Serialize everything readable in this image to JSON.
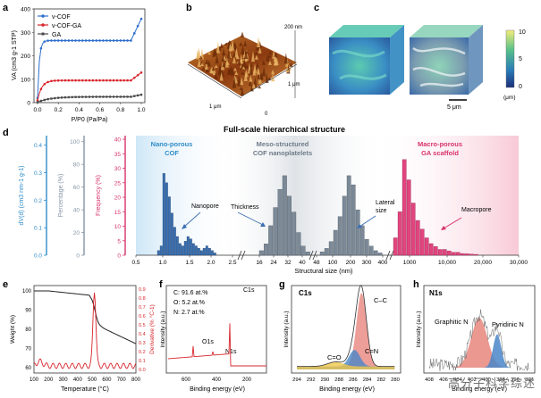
{
  "figure": {
    "panel_a": {
      "letter": "a",
      "ylabel": "VA (cm3 g-1 STP)",
      "xlabel": "P/P0 (Pa/Pa)",
      "yticks": [
        "0",
        "100",
        "200",
        "300",
        "400"
      ],
      "xticks": [
        "0.0",
        "0.2",
        "0.4",
        "0.6",
        "0.8",
        "1.0"
      ],
      "legend": [
        "v-COF",
        "v-COF-GA",
        "GA"
      ],
      "colors": {
        "cof": "#2f6fce",
        "cofga": "#d8262c",
        "ga": "#4a4a4a"
      }
    },
    "panel_b": {
      "letter": "b",
      "label_x": "1 μm",
      "label_y": "1 μm",
      "label_z": "200 nm",
      "label_0": "0"
    },
    "panel_c": {
      "letter": "c",
      "scale_label": "5 μm",
      "cbar_top": "10",
      "cbar_mid": "5",
      "cbar_bottom": "0",
      "cbar_unit": "(μm)"
    },
    "panel_d": {
      "letter": "d",
      "title": "Full-scale hierarchical structure",
      "ylabel_left": "dV(d) (cm3 nm-1 g-1)",
      "ylabel_mid": "Percentage (%)",
      "ylabel_right": "Frequency (%)",
      "y1_ticks": [
        "0.0",
        "0.1",
        "0.2",
        "0.3",
        "0.4"
      ],
      "y2_ticks": [
        "0",
        "20",
        "40",
        "60",
        "80",
        "100"
      ],
      "y3_ticks": [
        "0",
        "5",
        "10",
        "15",
        "20",
        "25",
        "30",
        "35",
        "40"
      ],
      "region1": "Nano-porous\nCOF",
      "region2": "Meso-structured\nCOF nanoplatelets",
      "region3": "Macro-porous\nGA scaffold",
      "ann_nanopore": "Nanopore",
      "ann_thickness": "Thickness",
      "ann_lateral": "Lateral\nsize",
      "ann_macropore": "Macropore",
      "xlabel": "Structural size (nm)",
      "xticks_1": [
        "0.5",
        "1.0",
        "1.5",
        "2.0",
        "2.5"
      ],
      "xticks_2": [
        "16",
        "24",
        "32",
        "40",
        "48"
      ],
      "xticks_3": [
        "100",
        "200",
        "300",
        "400"
      ],
      "xticks_4": [
        "1000",
        "10,000",
        "20,000",
        "30,000"
      ]
    },
    "panel_e": {
      "letter": "e",
      "ylabel_left": "Weight (%)",
      "ylabel_right": "Derivative (% °C-1)",
      "xlabel": "Temperature (°C)",
      "yticks": [
        "60",
        "70",
        "80",
        "90",
        "100"
      ],
      "y2ticks": [
        "0.0",
        "0.1",
        "0.2",
        "0.3",
        "0.4",
        "0.5",
        "0.6",
        "0.7",
        "0.8",
        "0.9"
      ],
      "xticks": [
        "100",
        "200",
        "300",
        "400",
        "500",
        "600",
        "700",
        "800"
      ]
    },
    "panel_f": {
      "letter": "f",
      "lines": [
        "C:  91.6 at.%",
        "O:  5.2 at.%",
        "N:  2.7 at.%"
      ],
      "peak_c": "C1s",
      "peak_o": "O1s",
      "peak_n": "N1s",
      "ylabel": "Intensity (a.u.)",
      "xlabel": "Binding energy (eV)",
      "xticks": [
        "600",
        "400",
        "200"
      ]
    },
    "panel_g": {
      "letter": "g",
      "title": "C1s",
      "p1": "C–C",
      "p2": "C=N",
      "p3": "C=O",
      "ylabel": "Intensity (a.u.)",
      "xlabel": "Binding energy (eV)",
      "xticks": [
        "294",
        "292",
        "290",
        "288",
        "286",
        "284",
        "282",
        "280"
      ]
    },
    "panel_h": {
      "letter": "h",
      "title": "N1s",
      "p1": "Graphitic N",
      "p2": "Pyridinic N",
      "ylabel": "Intensity (a.u.)",
      "xlabel": "Binding energy (eV)",
      "xticks": [
        "408",
        "406",
        "404",
        "402",
        "400",
        "398",
        "396",
        "394"
      ]
    },
    "watermark": "高分子科学综述"
  }
}
